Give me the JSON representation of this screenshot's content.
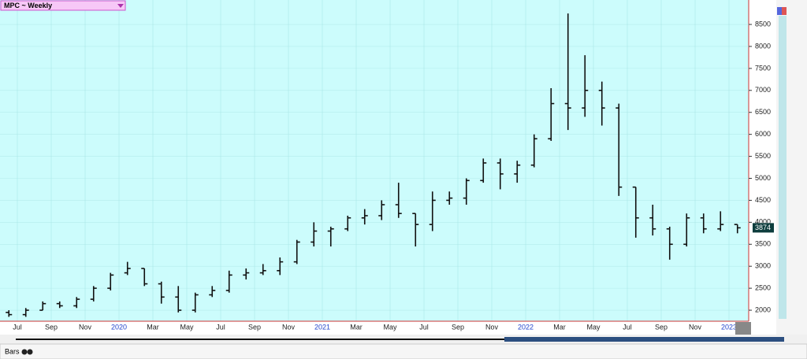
{
  "chart_data": {
    "type": "ohlc",
    "title": "MPC ~ Weekly",
    "footer_label": "Bars",
    "categories": [
      null,
      "Jul",
      null,
      "Sep",
      null,
      "Nov",
      null,
      "2020",
      null,
      "Mar",
      null,
      "May",
      null,
      "Jul",
      null,
      "Sep",
      null,
      "Nov",
      null,
      "2021",
      null,
      "Mar",
      null,
      "May",
      null,
      "Jul",
      null,
      "Sep",
      null,
      "Nov",
      null,
      "2022",
      null,
      "Mar",
      null,
      "May",
      null,
      "Jul",
      null,
      "Sep",
      null,
      "Nov",
      null,
      "2023"
    ],
    "open": [
      1950,
      1900,
      2000,
      2150,
      2100,
      2250,
      2500,
      2850,
      2950,
      2600,
      2300,
      2000,
      2350,
      2450,
      2800,
      2850,
      2900,
      3100,
      3550,
      3800,
      3850,
      4100,
      4150,
      4400,
      4200,
      3950,
      4500,
      4550,
      4950,
      5350,
      5100,
      5300,
      5900,
      6700,
      6600,
      7000,
      6600,
      4800,
      4100,
      3850,
      3500,
      4100,
      3850,
      3950
    ],
    "high": [
      2000,
      2050,
      2200,
      2200,
      2300,
      2550,
      2850,
      3100,
      2950,
      2650,
      2550,
      2400,
      2550,
      2900,
      2950,
      3050,
      3200,
      3600,
      4000,
      3900,
      4150,
      4300,
      4500,
      4900,
      4200,
      4700,
      4700,
      5000,
      5450,
      5450,
      5400,
      6000,
      7050,
      8750,
      7800,
      7200,
      6700,
      4800,
      4400,
      3900,
      4200,
      4200,
      4250,
      3950
    ],
    "low": [
      1850,
      1850,
      2000,
      2050,
      2050,
      2200,
      2450,
      2800,
      2550,
      2150,
      1950,
      1950,
      2300,
      2400,
      2700,
      2800,
      2800,
      3050,
      3450,
      3450,
      3800,
      3950,
      4050,
      4100,
      3450,
      3800,
      4400,
      4400,
      4900,
      4750,
      4900,
      5250,
      5850,
      6100,
      6400,
      6200,
      4600,
      3650,
      3700,
      3150,
      3450,
      3750,
      3800,
      3750
    ],
    "close": [
      1900,
      2000,
      2150,
      2100,
      2250,
      2500,
      2800,
      2950,
      2600,
      2300,
      2000,
      2350,
      2450,
      2800,
      2850,
      2900,
      3100,
      3550,
      3800,
      3850,
      4100,
      4150,
      4400,
      4200,
      3950,
      4500,
      4550,
      4950,
      5350,
      5100,
      5300,
      5900,
      6700,
      6600,
      7000,
      6600,
      4800,
      4100,
      3850,
      3500,
      4100,
      3850,
      3950,
      3874
    ],
    "color": "#111111",
    "background": "#ccfcfc",
    "grid": true,
    "ylim": [
      1750,
      9020
    ],
    "yticks": [
      2000,
      2500,
      3000,
      3500,
      4000,
      4500,
      5000,
      5500,
      6000,
      6500,
      7000,
      7500,
      8000,
      8500
    ]
  }
}
